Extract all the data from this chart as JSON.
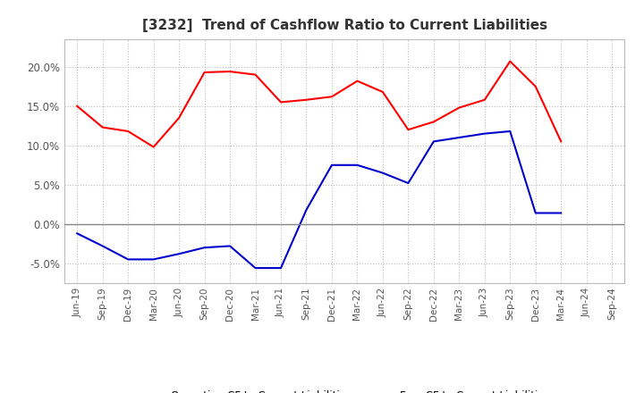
{
  "title": "[3232]  Trend of Cashflow Ratio to Current Liabilities",
  "x_labels": [
    "Jun-19",
    "Sep-19",
    "Dec-19",
    "Mar-20",
    "Jun-20",
    "Sep-20",
    "Dec-20",
    "Mar-21",
    "Jun-21",
    "Sep-21",
    "Dec-21",
    "Mar-22",
    "Jun-22",
    "Sep-22",
    "Dec-22",
    "Mar-23",
    "Jun-23",
    "Sep-23",
    "Dec-23",
    "Mar-24",
    "Jun-24",
    "Sep-24"
  ],
  "operating_cf": [
    0.15,
    0.123,
    0.118,
    0.098,
    0.135,
    0.193,
    0.194,
    0.19,
    0.155,
    0.158,
    0.162,
    0.182,
    0.168,
    0.12,
    0.13,
    0.148,
    0.158,
    0.207,
    0.175,
    0.105,
    null,
    null
  ],
  "free_cf": [
    -0.012,
    -0.028,
    -0.045,
    -0.045,
    -0.038,
    -0.03,
    -0.028,
    -0.056,
    -0.056,
    0.018,
    0.075,
    0.075,
    0.065,
    0.052,
    0.105,
    0.11,
    0.115,
    0.118,
    0.014,
    0.014,
    null,
    null
  ],
  "operating_color": "#FF0000",
  "free_color": "#0000CD",
  "ylim_min": -0.075,
  "ylim_max": 0.235,
  "yticks": [
    -0.05,
    0.0,
    0.05,
    0.1,
    0.15,
    0.2
  ],
  "background_color": "#FFFFFF",
  "plot_bg_color": "#FFFFFF",
  "grid_color": "#BBBBBB",
  "title_color": "#333333",
  "legend_labels": [
    "Operating CF to Current Liabilities",
    "Free CF to Current Liabilities"
  ]
}
